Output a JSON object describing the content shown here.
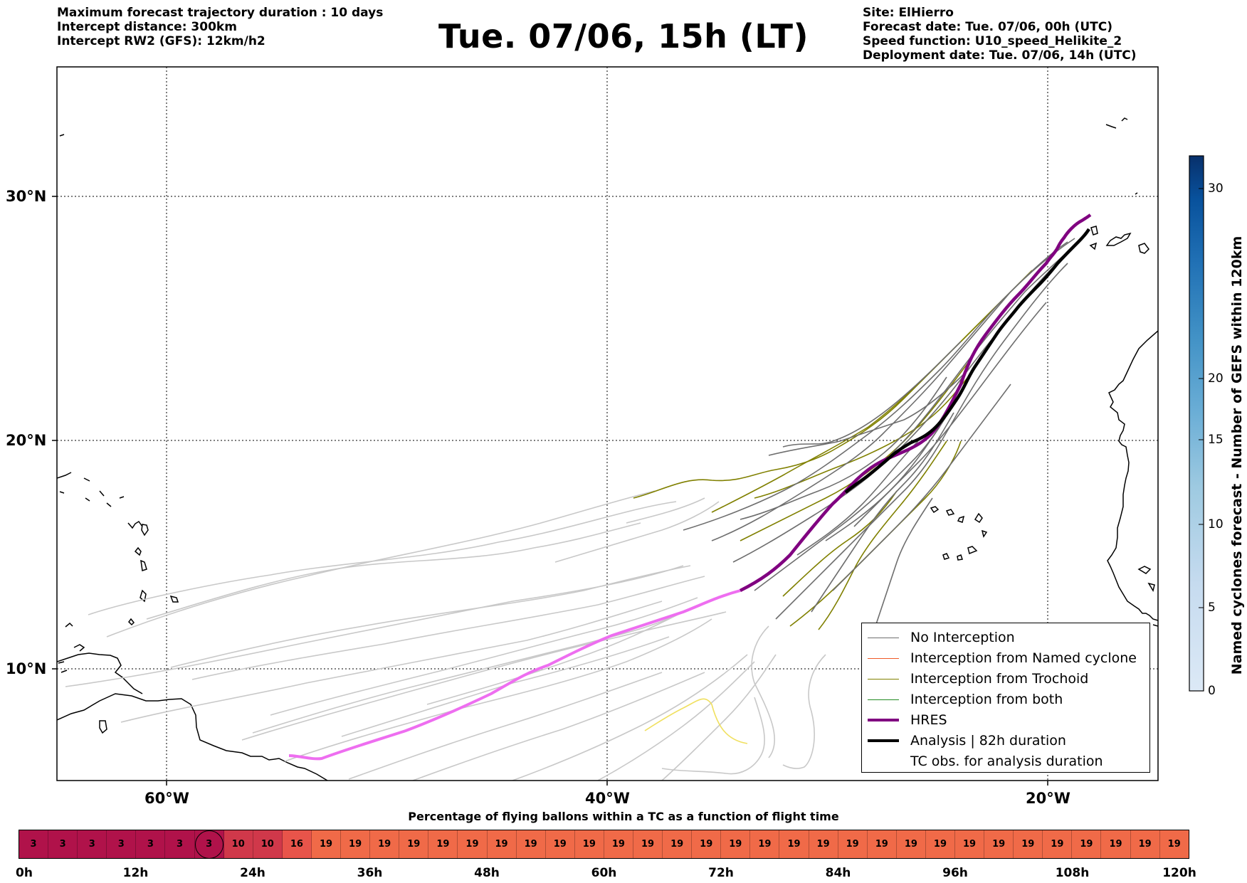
{
  "header_left": [
    "Maximum forecast trajectory duration : 10 days",
    "Intercept distance: 300km",
    "Intercept RW2 (GFS):  12km/h2"
  ],
  "title": "Tue. 07/06, 15h (LT)",
  "header_right": [
    "Site: ElHierro",
    "Forecast date: Tue. 07/06, 00h (UTC)",
    "Speed function: U10_speed_Helikite_2",
    "Deployment date: Tue. 07/06, 14h (UTC)"
  ],
  "map": {
    "lat_labels": [
      "30°N",
      "20°N",
      "10°N"
    ],
    "lon_labels": [
      "60°W",
      "40°W",
      "20°W"
    ],
    "colors": {
      "no_interception": "#6e6e6e",
      "no_interception_light": "#c8c8c8",
      "named_cyclone": "#f05a28",
      "trochoid": "#808000",
      "both": "#228b22",
      "hres": "#800080",
      "hres_light": "#ee6ef0",
      "analysis": "#000000",
      "yellow_track": "#f0e060"
    }
  },
  "colorbar": {
    "title": "Named cyclones forecast - Number of GEFS within 120km",
    "ticks": [
      "30",
      "20",
      "15",
      "10",
      "5",
      "0"
    ],
    "colors": [
      "#dce9f6",
      "#c6dbef",
      "#9ecae1",
      "#6baed6",
      "#4292c6",
      "#2171b5",
      "#08519c",
      "#08306b"
    ]
  },
  "legend": {
    "items": [
      {
        "label": "No Interception",
        "color": "#6e6e6e",
        "kind": "thin"
      },
      {
        "label": "Interception from Named cyclone",
        "color": "#f05a28",
        "kind": "thin"
      },
      {
        "label": "Interception from Trochoid",
        "color": "#808000",
        "kind": "thin"
      },
      {
        "label": "Interception from both",
        "color": "#228b22",
        "kind": "thin"
      },
      {
        "label": "HRES",
        "color": "#800080",
        "kind": "thick"
      },
      {
        "label": "Analysis | 82h duration",
        "color": "#000000",
        "kind": "thick"
      },
      {
        "label": "TC obs. for analysis duration",
        "color": "#000000",
        "kind": "symbol"
      }
    ]
  },
  "timebar": {
    "title": "Percentage of flying ballons within a TC as a function of flight time",
    "values": [
      3,
      3,
      3,
      3,
      3,
      3,
      3,
      10,
      10,
      16,
      19,
      19,
      19,
      19,
      19,
      19,
      19,
      19,
      19,
      19,
      19,
      19,
      19,
      19,
      19,
      19,
      19,
      19,
      19,
      19,
      19,
      19,
      19,
      19,
      19,
      19,
      19,
      19,
      19,
      19
    ],
    "circled_index": 6,
    "colors": {
      "3": "#b0124a",
      "10": "#d0384a",
      "16": "#e8544a",
      "19": "#f06a48"
    },
    "tick_labels": [
      "0h",
      "12h",
      "24h",
      "36h",
      "48h",
      "60h",
      "72h",
      "84h",
      "96h",
      "108h",
      "120h"
    ]
  }
}
